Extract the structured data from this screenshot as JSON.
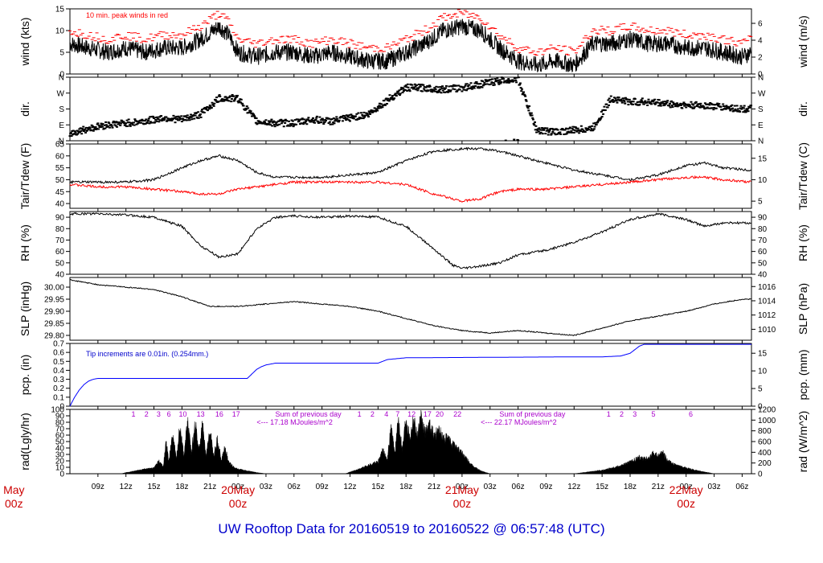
{
  "title": "UW Rooftop Data for 20160519  to  20160522 @ 06:57:48  (UTC)",
  "x_axis": {
    "range_hours": [
      6,
      79
    ],
    "hour_ticks": [
      {
        "h": 9,
        "label": "09z"
      },
      {
        "h": 12,
        "label": "12z"
      },
      {
        "h": 15,
        "label": "15z"
      },
      {
        "h": 18,
        "label": "18z"
      },
      {
        "h": 21,
        "label": "21z"
      },
      {
        "h": 24,
        "label": "00z"
      },
      {
        "h": 27,
        "label": "03z"
      },
      {
        "h": 30,
        "label": "06z"
      },
      {
        "h": 33,
        "label": "09z"
      },
      {
        "h": 36,
        "label": "12z"
      },
      {
        "h": 39,
        "label": "15z"
      },
      {
        "h": 42,
        "label": "18z"
      },
      {
        "h": 45,
        "label": "21z"
      },
      {
        "h": 48,
        "label": "00z"
      },
      {
        "h": 51,
        "label": "03z"
      },
      {
        "h": 54,
        "label": "06z"
      },
      {
        "h": 57,
        "label": "09z"
      },
      {
        "h": 60,
        "label": "12z"
      },
      {
        "h": 63,
        "label": "15z"
      },
      {
        "h": 66,
        "label": "18z"
      },
      {
        "h": 69,
        "label": "21z"
      },
      {
        "h": 72,
        "label": "00z"
      },
      {
        "h": 75,
        "label": "03z"
      },
      {
        "h": 78,
        "label": "06z"
      }
    ],
    "day_labels": [
      {
        "h": 0,
        "top": "May",
        "bottom": "00z"
      },
      {
        "h": 24,
        "top": "20May",
        "bottom": "00z"
      },
      {
        "h": 48,
        "top": "21May",
        "bottom": "00z"
      },
      {
        "h": 72,
        "top": "22May",
        "bottom": "00z"
      }
    ]
  },
  "chart_data": [
    {
      "type": "line",
      "panel": "wind",
      "ylabel": "wind (kts)",
      "ylabel_right": "wind (m/s)",
      "ylim": [
        0,
        15
      ],
      "yticks": [
        0,
        5,
        10,
        15
      ],
      "yticks_right": [
        0,
        2,
        4,
        6
      ],
      "annotation": "10 min. peak winds in red",
      "series": [
        {
          "name": "",
          "color": "#000000",
          "x": [
            6,
            8,
            10,
            12,
            14,
            16,
            18,
            20,
            22,
            23,
            24,
            26,
            28,
            30,
            32,
            34,
            36,
            38,
            40,
            42,
            44,
            46,
            48,
            50,
            52,
            54,
            56,
            58,
            60,
            62,
            64,
            66,
            68,
            70,
            72,
            74,
            76,
            78,
            79
          ],
          "values": [
            7,
            6,
            5,
            6,
            5,
            6,
            6,
            8,
            11,
            9,
            5,
            4,
            5,
            5,
            4,
            5,
            4,
            3,
            3,
            5,
            7,
            10,
            11,
            10,
            6,
            3,
            2,
            3,
            2,
            7,
            7,
            8,
            7,
            7,
            6,
            6,
            5,
            4,
            5
          ]
        },
        {
          "name": "",
          "color": "#ff0000",
          "x": [
            6,
            8,
            10,
            12,
            14,
            16,
            18,
            20,
            22,
            23,
            24,
            26,
            28,
            30,
            32,
            34,
            36,
            38,
            40,
            42,
            44,
            46,
            48,
            50,
            52,
            54,
            56,
            58,
            60,
            62,
            64,
            66,
            68,
            70,
            72,
            74,
            76,
            78,
            79
          ],
          "values": [
            10,
            9,
            8,
            9,
            8,
            9,
            9,
            11,
            14,
            12,
            8,
            7,
            8,
            8,
            7,
            8,
            7,
            6,
            6,
            8,
            10,
            13,
            14,
            13,
            9,
            6,
            5,
            6,
            5,
            10,
            10,
            11,
            10,
            10,
            9,
            9,
            8,
            7,
            8
          ]
        }
      ]
    },
    {
      "type": "scatter",
      "panel": "dir",
      "ylabel": "dir.",
      "ylabel_right": "dir.",
      "ylim": [
        0,
        360
      ],
      "yticks": [
        0,
        90,
        180,
        270,
        360
      ],
      "ytick_labels": [
        "N",
        "E",
        "S",
        "W",
        "N"
      ],
      "series": [
        {
          "name": "",
          "color": "#000000",
          "x": [
            6,
            8,
            10,
            12,
            14,
            16,
            18,
            20,
            22,
            24,
            26,
            28,
            30,
            32,
            34,
            36,
            38,
            40,
            42,
            44,
            46,
            48,
            50,
            52,
            54,
            56,
            58,
            60,
            62,
            64,
            66,
            68,
            70,
            72,
            74,
            76,
            78,
            79
          ],
          "values": [
            40,
            70,
            90,
            100,
            110,
            130,
            120,
            150,
            240,
            240,
            110,
            100,
            100,
            120,
            110,
            130,
            150,
            230,
            300,
            300,
            290,
            300,
            320,
            340,
            350,
            60,
            50,
            60,
            70,
            240,
            220,
            220,
            210,
            200,
            200,
            190,
            180,
            180
          ]
        }
      ]
    },
    {
      "type": "line",
      "panel": "temp",
      "ylabel": "Tair/Tdew (F)",
      "ylabel_right": "Tair/Tdew (C)",
      "ylim": [
        38,
        65
      ],
      "yticks": [
        40,
        45,
        50,
        55,
        60,
        65
      ],
      "yticks_right": [
        5,
        10,
        15
      ],
      "series": [
        {
          "name": "",
          "color": "#000000",
          "x": [
            6,
            9,
            12,
            15,
            18,
            20,
            22,
            24,
            26,
            28,
            30,
            33,
            36,
            39,
            42,
            45,
            48,
            50,
            52,
            54,
            57,
            60,
            63,
            66,
            69,
            72,
            74,
            76,
            79
          ],
          "values": [
            49,
            49,
            49,
            50,
            55,
            58,
            60,
            58,
            53,
            51,
            51,
            51,
            52,
            53,
            58,
            62,
            63,
            63,
            62,
            60,
            57,
            54,
            52,
            50,
            52,
            56,
            57,
            55,
            54
          ]
        },
        {
          "name": "",
          "color": "#ff0000",
          "x": [
            6,
            9,
            12,
            15,
            18,
            20,
            22,
            24,
            26,
            28,
            30,
            33,
            36,
            39,
            42,
            45,
            48,
            50,
            52,
            54,
            57,
            60,
            63,
            66,
            69,
            72,
            74,
            76,
            79
          ],
          "values": [
            48,
            47,
            47,
            46,
            45,
            44,
            44,
            46,
            47,
            48,
            49,
            49,
            49,
            49,
            48,
            44,
            41,
            42,
            45,
            46,
            46,
            47,
            48,
            49,
            50,
            51,
            51,
            50,
            49
          ]
        }
      ]
    },
    {
      "type": "line",
      "panel": "rh",
      "ylabel": "RH (%)",
      "ylabel_right": "RH (%)",
      "ylim": [
        40,
        95
      ],
      "yticks": [
        40,
        50,
        60,
        70,
        80,
        90
      ],
      "yticks_right": [
        40,
        50,
        60,
        70,
        80,
        90
      ],
      "series": [
        {
          "name": "",
          "color": "#000000",
          "x": [
            6,
            9,
            12,
            15,
            18,
            20,
            22,
            24,
            26,
            28,
            30,
            33,
            36,
            39,
            42,
            45,
            47,
            48,
            50,
            52,
            54,
            57,
            60,
            63,
            66,
            69,
            72,
            74,
            76,
            79
          ],
          "values": [
            93,
            93,
            92,
            90,
            82,
            65,
            55,
            58,
            80,
            90,
            91,
            90,
            91,
            90,
            82,
            62,
            48,
            45,
            47,
            50,
            57,
            61,
            68,
            77,
            88,
            93,
            88,
            82,
            85,
            85
          ]
        }
      ]
    },
    {
      "type": "line",
      "panel": "slp",
      "ylabel": "SLP (inHg)",
      "ylabel_right": "SLP (hPa)",
      "ylim": [
        29.78,
        30.04
      ],
      "yticks": [
        29.8,
        29.85,
        29.9,
        29.95,
        30.0
      ],
      "ytick_labels": [
        "29.80",
        "29.85",
        "29.90",
        "29.95",
        "30.00"
      ],
      "yticks_right_hpa": [
        1010,
        1012,
        1014,
        1016
      ],
      "series": [
        {
          "name": "",
          "color": "#000000",
          "x": [
            6,
            9,
            12,
            15,
            18,
            21,
            24,
            27,
            30,
            33,
            36,
            39,
            42,
            45,
            48,
            51,
            54,
            57,
            60,
            63,
            66,
            69,
            72,
            75,
            78,
            79
          ],
          "values": [
            30.03,
            30.01,
            30.0,
            29.99,
            29.96,
            29.92,
            29.92,
            29.93,
            29.94,
            29.93,
            29.92,
            29.9,
            29.87,
            29.84,
            29.82,
            29.81,
            29.82,
            29.81,
            29.8,
            29.83,
            29.86,
            29.88,
            29.9,
            29.93,
            29.95,
            29.95
          ]
        }
      ]
    },
    {
      "type": "line",
      "panel": "pcp",
      "ylabel": "pcp. (in)",
      "ylabel_right": "pcp. (mm)",
      "ylim": [
        0,
        0.7
      ],
      "yticks": [
        0,
        0.1,
        0.2,
        0.3,
        0.4,
        0.5,
        0.6,
        0.7
      ],
      "ytick_labels": [
        "0",
        "0.1",
        "0.2",
        "0.3",
        "0.4",
        "0.5",
        "0.6",
        "0.7"
      ],
      "yticks_right_mm": [
        0,
        5,
        10,
        15
      ],
      "annotation": "Tip increments are 0.01in. (0.254mm.)",
      "series": [
        {
          "name": "",
          "color": "#0000ff",
          "x": [
            6,
            6.5,
            7,
            7.5,
            8,
            8.5,
            9,
            25,
            25.5,
            26,
            26.5,
            27,
            28,
            39,
            40,
            41,
            42,
            60,
            63,
            65,
            66,
            66.5,
            67,
            67.5,
            79
          ],
          "values": [
            0.0,
            0.1,
            0.18,
            0.24,
            0.28,
            0.3,
            0.31,
            0.31,
            0.36,
            0.41,
            0.44,
            0.46,
            0.48,
            0.48,
            0.52,
            0.53,
            0.54,
            0.55,
            0.55,
            0.56,
            0.59,
            0.63,
            0.67,
            0.69,
            0.69
          ]
        }
      ]
    },
    {
      "type": "area",
      "panel": "rad",
      "ylabel": "rad(Lgly/hr)",
      "ylabel_right": "rad (W/m^2)",
      "ylim": [
        0,
        100
      ],
      "yticks": [
        0,
        10,
        20,
        30,
        40,
        50,
        60,
        70,
        80,
        90,
        100
      ],
      "yticks_right": [
        "0",
        "200",
        "400",
        "600",
        "800",
        "1000",
        "1200"
      ],
      "annotations": [
        {
          "h": 28,
          "text": "Sum of previous day"
        },
        {
          "h": 26,
          "text": "<--- 17.18 MJoules/m^2"
        },
        {
          "h": 52,
          "text": "Sum of previous day"
        },
        {
          "h": 50,
          "text": "<--- 22.17 MJoules/m^2"
        }
      ],
      "hour_markers": [
        {
          "h": 12.8,
          "label": "1"
        },
        {
          "h": 14.2,
          "label": "2"
        },
        {
          "h": 15.5,
          "label": "3"
        },
        {
          "h": 16.6,
          "label": "6"
        },
        {
          "h": 18.1,
          "label": "10"
        },
        {
          "h": 20,
          "label": "13"
        },
        {
          "h": 22,
          "label": "16"
        },
        {
          "h": 23.8,
          "label": "17"
        },
        {
          "h": 37,
          "label": "1"
        },
        {
          "h": 38.4,
          "label": "2"
        },
        {
          "h": 39.9,
          "label": "4"
        },
        {
          "h": 41.1,
          "label": "7"
        },
        {
          "h": 42.6,
          "label": "12"
        },
        {
          "h": 44.3,
          "label": "17"
        },
        {
          "h": 45.6,
          "label": "20"
        },
        {
          "h": 47.5,
          "label": "22"
        },
        {
          "h": 63.7,
          "label": "1"
        },
        {
          "h": 65.1,
          "label": "2"
        },
        {
          "h": 66.5,
          "label": "3"
        },
        {
          "h": 68.5,
          "label": "5"
        },
        {
          "h": 72.5,
          "label": "6"
        }
      ],
      "series": [
        {
          "name": "",
          "color": "#000000",
          "x": [
            11.5,
            12,
            13,
            14,
            15,
            15.5,
            16,
            16.3,
            16.6,
            17,
            17.4,
            17.8,
            18.2,
            18.6,
            19,
            19.4,
            19.8,
            20.2,
            20.6,
            21,
            21.4,
            21.8,
            22.2,
            22.6,
            23,
            23.5,
            24,
            25,
            26,
            27
          ],
          "values": [
            0,
            2,
            5,
            8,
            10,
            22,
            12,
            55,
            20,
            70,
            25,
            85,
            30,
            90,
            35,
            90,
            40,
            85,
            30,
            75,
            30,
            60,
            25,
            45,
            20,
            12,
            8,
            5,
            2,
            0
          ]
        },
        {
          "name": "",
          "color": "#000000",
          "x": [
            35.5,
            36,
            37,
            38,
            39,
            39.5,
            40,
            40.4,
            40.8,
            41.2,
            41.6,
            42,
            42.4,
            42.8,
            43.2,
            43.6,
            44,
            44.5,
            45,
            45.5,
            46,
            46.5,
            47,
            47.5,
            48,
            48.5,
            49,
            50,
            51
          ],
          "values": [
            0,
            3,
            8,
            15,
            20,
            40,
            25,
            80,
            35,
            95,
            40,
            100,
            60,
            98,
            65,
            95,
            70,
            85,
            65,
            75,
            60,
            60,
            50,
            45,
            35,
            25,
            15,
            5,
            0
          ]
        },
        {
          "name": "",
          "color": "#000000",
          "x": [
            60,
            61,
            62,
            63,
            64,
            65,
            66,
            67,
            68,
            68.5,
            69,
            69.5,
            70,
            71,
            72,
            73,
            74,
            75
          ],
          "values": [
            0,
            2,
            4,
            6,
            10,
            14,
            20,
            28,
            25,
            35,
            30,
            38,
            22,
            14,
            10,
            6,
            3,
            0
          ]
        }
      ]
    }
  ]
}
